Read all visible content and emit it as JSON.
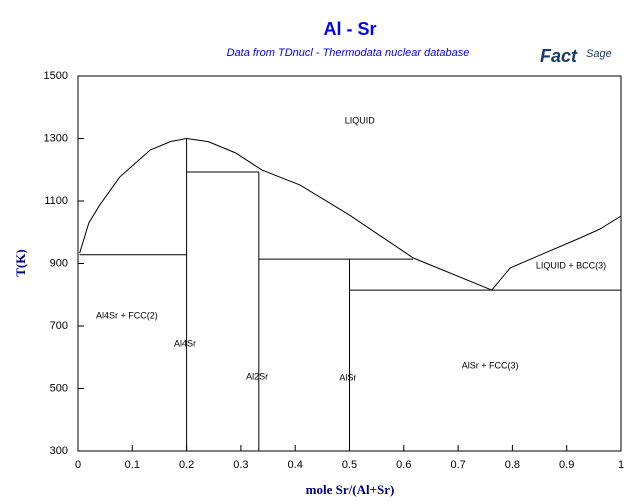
{
  "chart_data": {
    "type": "line",
    "title": "Al - Sr",
    "subtitle": "Data from TDnucl - Thermodata nuclear database",
    "logo": [
      "Fact",
      "Sage"
    ],
    "x_label": "mole Sr/(Al+Sr)",
    "y_label": "T(K)",
    "xlim": [
      0,
      1
    ],
    "ylim": [
      300,
      1500
    ],
    "xticks": [
      0,
      0.1,
      0.2,
      0.3,
      0.4,
      0.5,
      0.6,
      0.7,
      0.8,
      0.9,
      1
    ],
    "yticks": [
      300,
      500,
      700,
      900,
      1100,
      1300,
      1500
    ],
    "series": [
      {
        "color": "#000000",
        "x": [
          0.003,
          0.02,
          0.04,
          0.077,
          0.133,
          0.17,
          0.2
        ],
        "values": [
          933,
          1030,
          1087,
          1177,
          1263,
          1290,
          1300
        ]
      },
      {
        "color": "#000000",
        "x": [
          0.2,
          0.24,
          0.29,
          0.339,
          0.409,
          0.5,
          0.617,
          0.762
        ],
        "values": [
          1300,
          1290,
          1254,
          1199,
          1151,
          1055,
          918,
          815
        ]
      },
      {
        "color": "#000000",
        "x": [
          0.762,
          0.796,
          0.851,
          0.925,
          0.961,
          1.0
        ],
        "values": [
          815,
          886,
          927,
          982,
          1010,
          1052
        ]
      },
      {
        "color": "#000000",
        "x": [
          0.003,
          0.2
        ],
        "values": [
          928,
          928
        ]
      },
      {
        "color": "#000000",
        "x": [
          0.2,
          0.333
        ],
        "values": [
          1193,
          1193
        ]
      },
      {
        "color": "#000000",
        "x": [
          0.333,
          0.617
        ],
        "values": [
          914,
          914
        ]
      },
      {
        "color": "#000000",
        "x": [
          0.5,
          1.0
        ],
        "values": [
          815,
          815
        ]
      },
      {
        "color": "#000000",
        "x": [
          0.2,
          0.2
        ],
        "values": [
          300,
          1300
        ]
      },
      {
        "color": "#000000",
        "x": [
          0.333,
          0.333
        ],
        "values": [
          300,
          1193
        ]
      },
      {
        "color": "#000000",
        "x": [
          0.5,
          0.5
        ],
        "values": [
          300,
          914
        ]
      }
    ],
    "annotations": [
      {
        "text": "LIQUID",
        "x": 0.519,
        "y": 1356
      },
      {
        "text": "LIQUID + BCC(3)",
        "x": 0.908,
        "y": 892
      },
      {
        "text": "Al4Sr + FCC(2)",
        "x": 0.09,
        "y": 732
      },
      {
        "text": "Al4Sr",
        "x": 0.197,
        "y": 642
      },
      {
        "text": "Al2Sr",
        "x": 0.33,
        "y": 537
      },
      {
        "text": "AlSr",
        "x": 0.497,
        "y": 534
      },
      {
        "text": "AlSr + FCC(3)",
        "x": 0.759,
        "y": 572
      }
    ]
  }
}
